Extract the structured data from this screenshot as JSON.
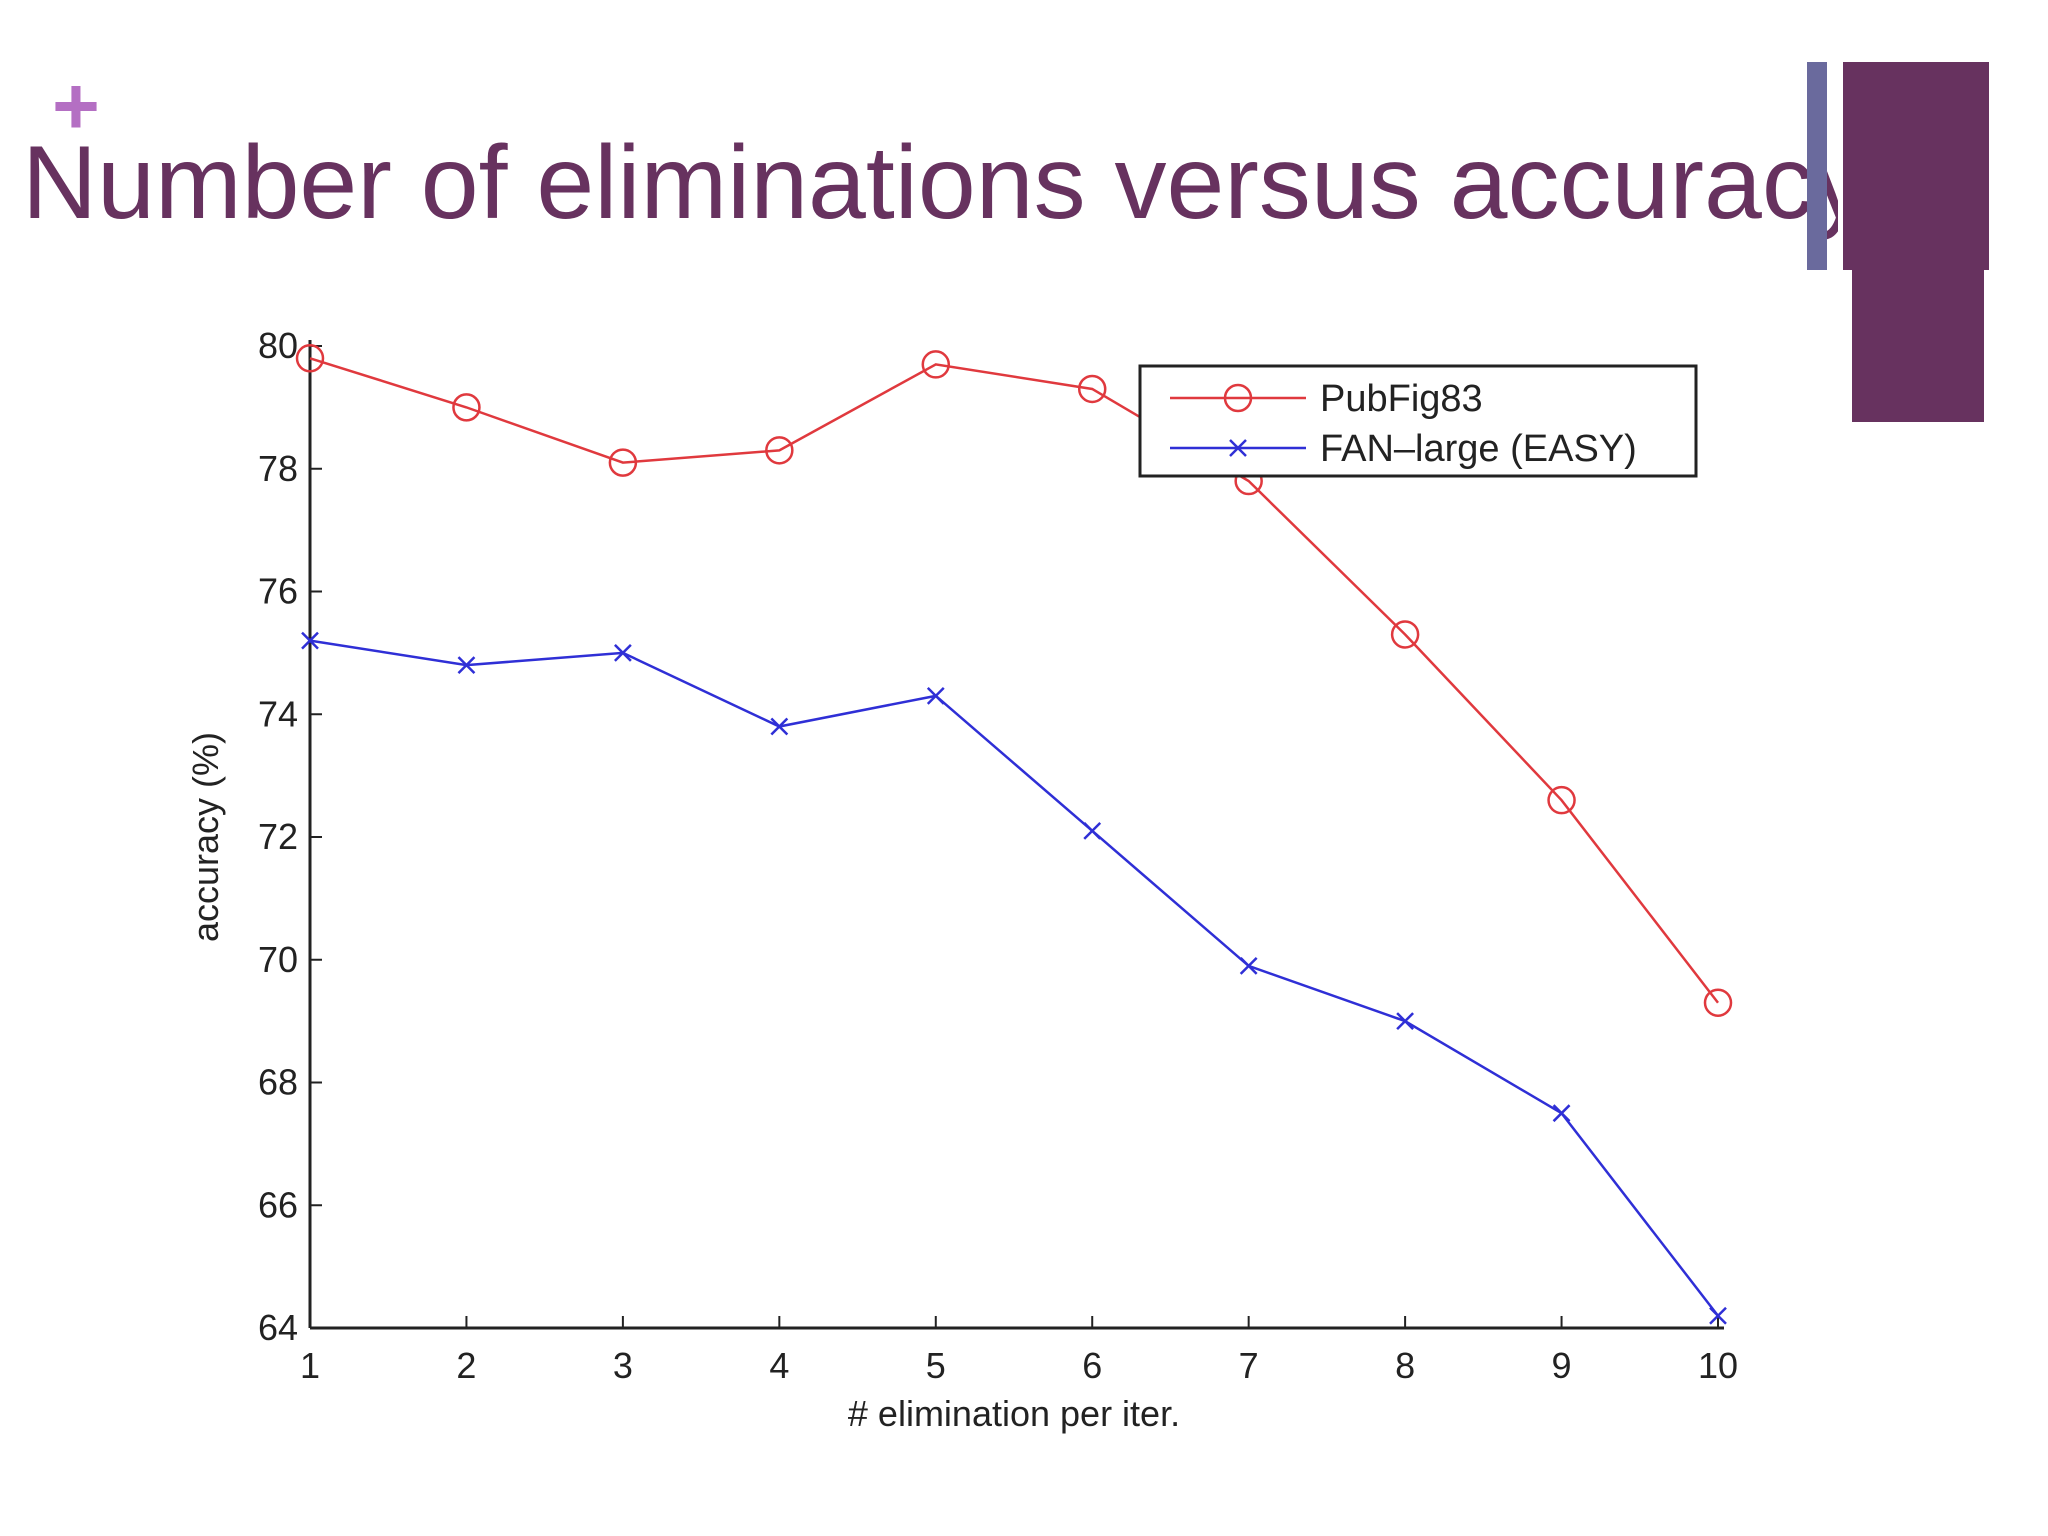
{
  "slide": {
    "plus_symbol": "+",
    "title": "Number of eliminations versus accuracy"
  },
  "colors": {
    "title": "#67325f",
    "plus": "#b46fc3",
    "accent_bar": "#6a6a9d",
    "series_red": "#e0393e",
    "series_blue": "#2f2fd6"
  },
  "chart_data": {
    "type": "line",
    "xlabel": "# elimination per iter.",
    "ylabel": "accuracy (%)",
    "xlim": [
      1,
      10
    ],
    "ylim": [
      64,
      80
    ],
    "xticks": [
      1,
      2,
      3,
      4,
      5,
      6,
      7,
      8,
      9,
      10
    ],
    "yticks": [
      64,
      66,
      68,
      70,
      72,
      74,
      76,
      78,
      80
    ],
    "legend_position": "top-right",
    "grid": false,
    "series": [
      {
        "name": "PubFig83",
        "marker": "circle",
        "color": "#e0393e",
        "x": [
          1,
          2,
          3,
          4,
          5,
          6,
          7,
          8,
          9,
          10
        ],
        "values": [
          79.8,
          79.0,
          78.1,
          78.3,
          79.7,
          79.3,
          77.8,
          75.3,
          72.6,
          69.3
        ]
      },
      {
        "name": "FAN–large (EASY)",
        "marker": "x",
        "color": "#2f2fd6",
        "x": [
          1,
          2,
          3,
          4,
          5,
          6,
          7,
          8,
          9,
          10
        ],
        "values": [
          75.2,
          74.8,
          75.0,
          73.8,
          74.3,
          72.1,
          69.9,
          69.0,
          67.5,
          64.2
        ]
      }
    ]
  }
}
